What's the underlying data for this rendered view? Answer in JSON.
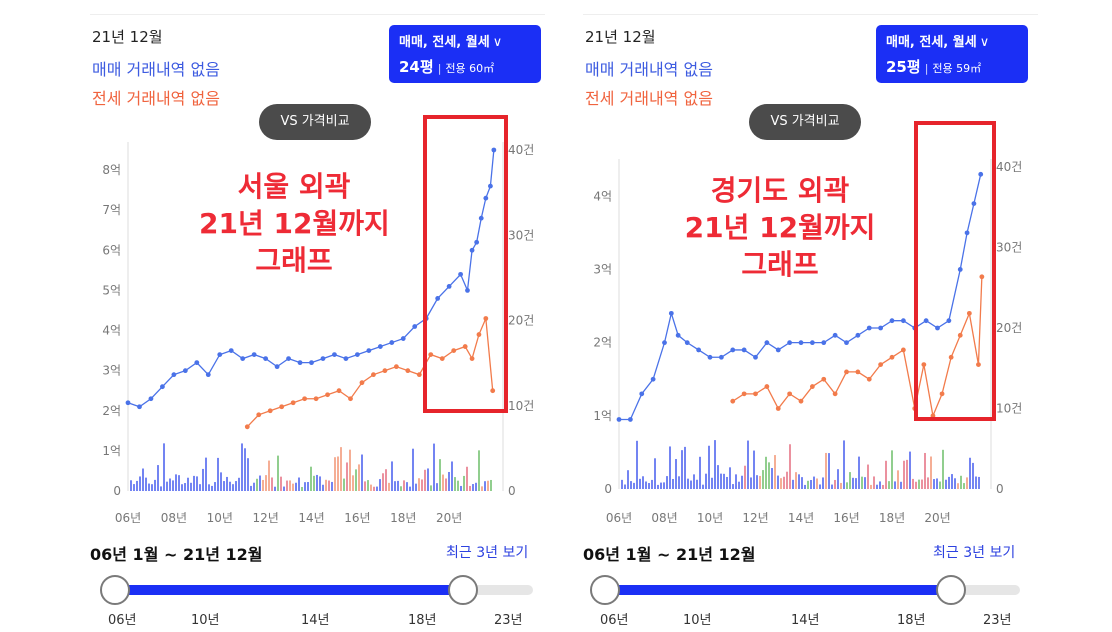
{
  "panels": [
    {
      "date": "21년 12월",
      "sale_none": "매매 거래내역 없음",
      "jeonse_none": "전세 거래내역 없음",
      "type_line1": "매매, 전세, 월세",
      "chevron": "∨",
      "pyeong": "24평",
      "separator": "|",
      "area": "전용 60㎡",
      "vs_button": "VS 가격비교",
      "annotation": [
        "서울 외곽",
        "21년 12월까지",
        "그래프"
      ],
      "period": "06년 1월 ~ 21년 12월",
      "recent": "최근 3년 보기",
      "slider_ticks": [
        "06년",
        "10년",
        "14년",
        "18년",
        "23년"
      ],
      "slider_range": [
        "06년",
        "21년 12월"
      ],
      "accent_color": "#ee2b36"
    },
    {
      "date": "21년 12월",
      "sale_none": "매매 거래내역 없음",
      "jeonse_none": "전세 거래내역 없음",
      "type_line1": "매매, 전세, 월세",
      "chevron": "∨",
      "pyeong": "25평",
      "separator": "|",
      "area": "전용 59㎡",
      "vs_button": "VS 가격비교",
      "annotation": [
        "경기도 외곽",
        "21년 12월까지",
        "그래프"
      ],
      "period": "06년 1월 ~ 21년 12월",
      "recent": "최근 3년 보기",
      "slider_ticks": [
        "06년",
        "10년",
        "14년",
        "18년",
        "23년"
      ],
      "slider_range": [
        "06년",
        "21년 12월"
      ],
      "accent_color": "#ee2b36"
    }
  ],
  "chart_data": [
    {
      "type": "line",
      "x_ticks": [
        "06년",
        "08년",
        "10년",
        "12년",
        "14년",
        "16년",
        "18년",
        "20년"
      ],
      "y_ticks_left": [
        "0",
        "1억",
        "2억",
        "3억",
        "4억",
        "5억",
        "6억",
        "7억",
        "8억"
      ],
      "y_ticks_right": [
        "0",
        "10건",
        "20건",
        "30건",
        "40건"
      ],
      "ylim_left": [
        0,
        8.5
      ],
      "ylim_right": [
        0,
        40
      ],
      "series": [
        {
          "color": "#4a72e8",
          "x": [
            2006.0,
            2006.5,
            2007.0,
            2007.5,
            2008.0,
            2008.5,
            2009.0,
            2009.5,
            2010.0,
            2010.5,
            2011.0,
            2011.5,
            2012.0,
            2012.5,
            2013.0,
            2013.5,
            2014.0,
            2014.5,
            2015.0,
            2015.5,
            2016.0,
            2016.5,
            2017.0,
            2017.5,
            2018.0,
            2018.5,
            2019.0,
            2019.5,
            2020.0,
            2020.5,
            2020.8,
            2021.0,
            2021.2,
            2021.4,
            2021.6,
            2021.8,
            2021.95
          ],
          "y": [
            2.2,
            2.1,
            2.3,
            2.6,
            2.9,
            3.0,
            3.2,
            2.9,
            3.4,
            3.5,
            3.3,
            3.4,
            3.3,
            3.1,
            3.3,
            3.2,
            3.2,
            3.3,
            3.4,
            3.3,
            3.4,
            3.5,
            3.6,
            3.7,
            3.8,
            4.1,
            4.3,
            4.8,
            5.1,
            5.4,
            5.0,
            6.0,
            6.2,
            6.8,
            7.3,
            7.6,
            8.5
          ]
        },
        {
          "color": "#f27b4b",
          "x": [
            2011.2,
            2011.7,
            2012.2,
            2012.7,
            2013.2,
            2013.7,
            2014.2,
            2014.7,
            2015.2,
            2015.7,
            2016.2,
            2016.7,
            2017.2,
            2017.7,
            2018.2,
            2018.7,
            2019.2,
            2019.7,
            2020.2,
            2020.7,
            2021.0,
            2021.3,
            2021.6,
            2021.9
          ],
          "y": [
            1.6,
            1.9,
            2.0,
            2.1,
            2.2,
            2.3,
            2.3,
            2.4,
            2.5,
            2.3,
            2.7,
            2.9,
            3.0,
            3.1,
            3.0,
            2.9,
            3.4,
            3.3,
            3.5,
            3.6,
            3.3,
            3.9,
            4.3,
            2.5
          ]
        }
      ]
    },
    {
      "type": "line",
      "x_ticks": [
        "06년",
        "08년",
        "10년",
        "12년",
        "14년",
        "16년",
        "18년",
        "20년"
      ],
      "y_ticks_left": [
        "0",
        "1억",
        "2억",
        "3억",
        "4억"
      ],
      "y_ticks_right": [
        "0",
        "10건",
        "20건",
        "30건",
        "40건"
      ],
      "ylim_left": [
        0,
        4.4
      ],
      "ylim_right": [
        0,
        40
      ],
      "series": [
        {
          "color": "#4a72e8",
          "x": [
            2006.0,
            2006.5,
            2007.0,
            2007.5,
            2008.0,
            2008.3,
            2008.6,
            2009.0,
            2009.5,
            2010.0,
            2010.5,
            2011.0,
            2011.5,
            2012.0,
            2012.5,
            2013.0,
            2013.5,
            2014.0,
            2014.5,
            2015.0,
            2015.5,
            2016.0,
            2016.5,
            2017.0,
            2017.5,
            2018.0,
            2018.5,
            2019.0,
            2019.5,
            2020.0,
            2020.5,
            2021.0,
            2021.3,
            2021.6,
            2021.9
          ],
          "y": [
            0.95,
            0.95,
            1.3,
            1.5,
            2.0,
            2.4,
            2.1,
            2.0,
            1.9,
            1.8,
            1.8,
            1.9,
            1.9,
            1.8,
            2.0,
            1.9,
            2.0,
            2.0,
            2.0,
            2.0,
            2.1,
            2.0,
            2.1,
            2.2,
            2.2,
            2.3,
            2.3,
            2.2,
            2.3,
            2.2,
            2.3,
            3.0,
            3.5,
            3.9,
            4.3
          ]
        },
        {
          "color": "#f27b4b",
          "x": [
            2011.0,
            2011.5,
            2012.0,
            2012.5,
            2013.0,
            2013.5,
            2014.0,
            2014.5,
            2015.0,
            2015.5,
            2016.0,
            2016.5,
            2017.0,
            2017.5,
            2018.0,
            2018.5,
            2019.0,
            2019.4,
            2019.8,
            2020.2,
            2020.6,
            2021.0,
            2021.4,
            2021.8,
            2021.95
          ],
          "y": [
            1.2,
            1.3,
            1.3,
            1.4,
            1.1,
            1.3,
            1.2,
            1.4,
            1.5,
            1.3,
            1.6,
            1.6,
            1.5,
            1.7,
            1.8,
            1.9,
            1.1,
            1.7,
            1.0,
            1.3,
            1.8,
            2.1,
            2.4,
            1.7,
            2.9
          ]
        }
      ]
    }
  ]
}
